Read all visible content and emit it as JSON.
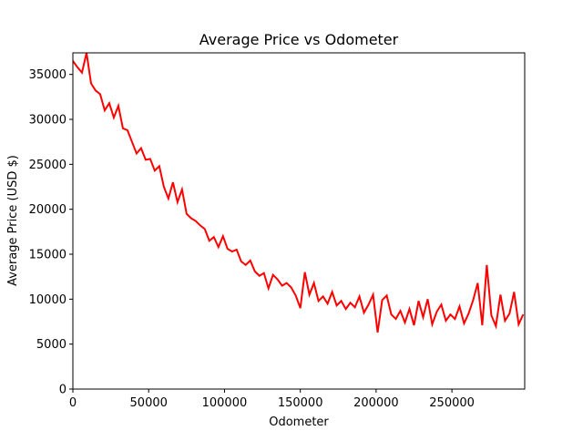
{
  "chart_data": {
    "type": "line",
    "title": "Average Price vs Odometer",
    "x_label": "Odometer",
    "y_label": "Average Price (USD $)",
    "x": [
      0,
      3000,
      6000,
      9000,
      12000,
      15000,
      18000,
      21000,
      24000,
      27000,
      30000,
      33000,
      36000,
      39000,
      42000,
      45000,
      48000,
      51000,
      54000,
      57000,
      60000,
      63000,
      66000,
      69000,
      72000,
      75000,
      78000,
      81000,
      84000,
      87000,
      90000,
      93000,
      96000,
      99000,
      102000,
      105000,
      108000,
      111000,
      114000,
      117000,
      120000,
      123000,
      126000,
      129000,
      132000,
      135000,
      138000,
      141000,
      144000,
      147000,
      150000,
      153000,
      156000,
      159000,
      162000,
      165000,
      168000,
      171000,
      174000,
      177000,
      180000,
      183000,
      186000,
      189000,
      192000,
      195000,
      198000,
      201000,
      204000,
      207000,
      210000,
      213000,
      216000,
      219000,
      222000,
      225000,
      228000,
      231000,
      234000,
      237000,
      240000,
      243000,
      246000,
      249000,
      252000,
      255000,
      258000,
      261000,
      264000,
      267000,
      270000,
      273000,
      276000,
      279000,
      282000,
      285000,
      288000,
      291000,
      294000,
      297000
    ],
    "series": [
      {
        "name": "Average Price",
        "color": "#ff0000",
        "values": [
          36500,
          35800,
          35200,
          37400,
          34000,
          33200,
          32800,
          31000,
          31800,
          30200,
          31500,
          29000,
          28800,
          27500,
          26200,
          26800,
          25500,
          25600,
          24300,
          24800,
          22500,
          21200,
          23000,
          20800,
          22200,
          19500,
          19000,
          18700,
          18200,
          17800,
          16500,
          16900,
          15800,
          17000,
          15600,
          15300,
          15500,
          14200,
          13800,
          14300,
          13100,
          12600,
          12900,
          11200,
          12700,
          12200,
          11500,
          11800,
          11300,
          10400,
          9000,
          13000,
          10500,
          11800,
          9800,
          10300,
          9500,
          10800,
          9300,
          9800,
          8900,
          9600,
          9100,
          10300,
          8500,
          9400,
          10500,
          6300,
          9900,
          10400,
          8300,
          7800,
          8700,
          7400,
          8900,
          7100,
          9800,
          8000,
          10000,
          7200,
          8600,
          9400,
          7600,
          8300,
          7800,
          9200,
          7300,
          8400,
          9900,
          11800,
          7100,
          13800,
          8200,
          7000,
          10500,
          7600,
          8400,
          10800,
          7200,
          8300
        ]
      }
    ],
    "xlim": [
      0,
      298000
    ],
    "ylim": [
      0,
      37400
    ],
    "xticks": [
      0,
      50000,
      100000,
      150000,
      200000,
      250000
    ],
    "yticks": [
      0,
      5000,
      10000,
      15000,
      20000,
      25000,
      30000,
      35000
    ]
  }
}
